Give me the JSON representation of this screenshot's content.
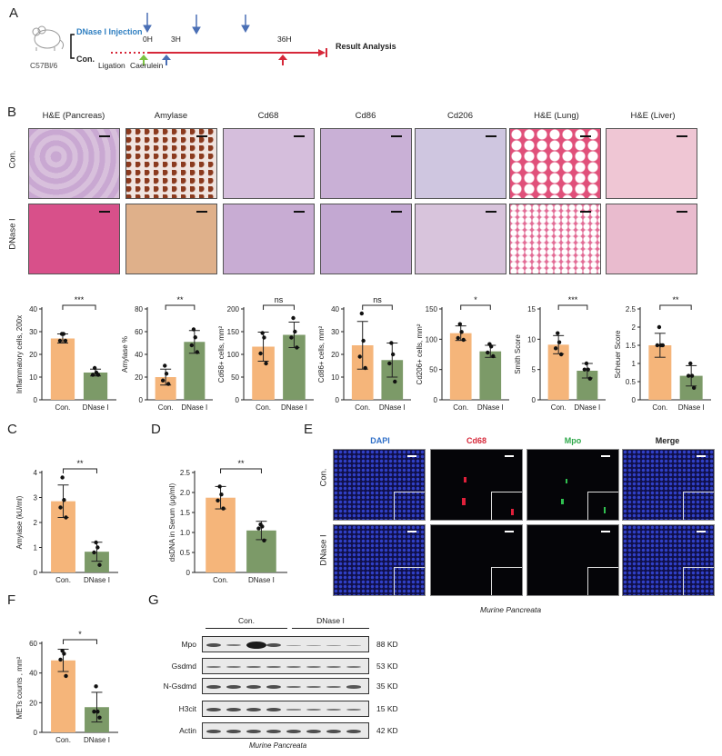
{
  "panels": {
    "A": {
      "letter": "A",
      "strain": "C57Bl/6",
      "groups": [
        "DNase I Injection",
        "Con."
      ],
      "steps": [
        "Ligation",
        "Caerulein"
      ],
      "timepoints": [
        "0H",
        "3H",
        "36H"
      ],
      "endpoint": "Result Analysis",
      "colors": {
        "timeline": "#d62839",
        "dnase": "#2f7fc1",
        "ligation_arrow": "#7cc242",
        "caerulein_arrow": "#4a6fb5",
        "injection_arrow": "#4a6fb5",
        "end_arrow": "#d62839"
      }
    },
    "B": {
      "letter": "B",
      "columns": [
        "H&E (Pancreas)",
        "Amylase",
        "Cd68",
        "Cd86",
        "Cd206",
        "H&E (Lung)",
        "H&E (Liver)"
      ],
      "rows": [
        "Con.",
        "DNase I"
      ]
    },
    "C": {
      "letter": "C"
    },
    "D": {
      "letter": "D"
    },
    "E": {
      "letter": "E",
      "columns": [
        "DAPI",
        "Cd68",
        "Mpo",
        "Merge"
      ],
      "column_colors": [
        "#2f6fc8",
        "#d62839",
        "#2ea84a",
        "#111111"
      ],
      "rows": [
        "Con.",
        "DNase I"
      ],
      "caption": "Murine Pancreata"
    },
    "F": {
      "letter": "F"
    },
    "G": {
      "letter": "G",
      "groups": [
        "Con.",
        "DNase I"
      ],
      "proteins": [
        "Mpo",
        "Gsdmd",
        "N-Gsdmd",
        "H3cit",
        "Actin"
      ],
      "sizes": [
        "88 KD",
        "53 KD",
        "35 KD",
        "15 KD",
        "42 KD"
      ],
      "caption": "Murine Pancreata"
    }
  },
  "chart_data": [
    {
      "id": "B1",
      "type": "bar",
      "categories": [
        "Con.",
        "DNase I"
      ],
      "values": [
        27,
        12
      ],
      "error": [
        2,
        1.5
      ],
      "points": [
        [
          29,
          29,
          26,
          26
        ],
        [
          14,
          12,
          11,
          11
        ]
      ],
      "ylabel": "Inflammatory cells, 200x",
      "ylim": [
        0,
        40
      ],
      "yticks": [
        0,
        10,
        20,
        30,
        40
      ],
      "significance": "***"
    },
    {
      "id": "B2",
      "type": "bar",
      "categories": [
        "Con.",
        "DNase I"
      ],
      "values": [
        20,
        51
      ],
      "error": [
        7,
        10
      ],
      "points": [
        [
          30,
          23,
          17,
          14
        ],
        [
          62,
          55,
          48,
          42
        ]
      ],
      "ylabel": "Amylase %",
      "ylim": [
        0,
        80
      ],
      "yticks": [
        0,
        20,
        40,
        60,
        80
      ],
      "significance": "**"
    },
    {
      "id": "B3",
      "type": "bar",
      "categories": [
        "Con.",
        "DNase I"
      ],
      "values": [
        117,
        143
      ],
      "error": [
        32,
        28
      ],
      "points": [
        [
          147,
          137,
          102,
          80
        ],
        [
          180,
          150,
          137,
          115
        ]
      ],
      "ylabel": "Cd68+ cells, mm²",
      "ylim": [
        0,
        200
      ],
      "yticks": [
        0,
        50,
        100,
        150,
        200
      ],
      "significance": "ns"
    },
    {
      "id": "B4",
      "type": "bar",
      "categories": [
        "Con.",
        "DNase I"
      ],
      "values": [
        24,
        17.5
      ],
      "error": [
        10.5,
        7.5
      ],
      "points": [
        [
          38,
          26,
          19,
          14
        ],
        [
          25,
          20,
          16,
          8
        ]
      ],
      "ylabel": "Cd86+ cells, mm²",
      "ylim": [
        0,
        40
      ],
      "yticks": [
        0,
        10,
        20,
        30,
        40
      ],
      "significance": "ns"
    },
    {
      "id": "B5",
      "type": "bar",
      "categories": [
        "Con.",
        "DNase I"
      ],
      "values": [
        110,
        80
      ],
      "error": [
        12,
        10
      ],
      "points": [
        [
          125,
          112,
          102,
          99
        ],
        [
          92,
          88,
          78,
          72
        ]
      ],
      "ylabel": "Cd206+ cells, mm²",
      "ylim": [
        0,
        150
      ],
      "yticks": [
        0,
        50,
        100,
        150
      ],
      "significance": "*"
    },
    {
      "id": "B6",
      "type": "bar",
      "categories": [
        "Con.",
        "DNase I"
      ],
      "values": [
        9.1,
        4.8
      ],
      "error": [
        1.5,
        1.2
      ],
      "points": [
        [
          11,
          9.5,
          8.5,
          7.5
        ],
        [
          6,
          5,
          5,
          3.5
        ]
      ],
      "ylabel": "Smith Score",
      "ylim": [
        0,
        15
      ],
      "yticks": [
        0,
        5,
        10,
        15
      ],
      "significance": "***"
    },
    {
      "id": "B7",
      "type": "bar",
      "categories": [
        "Con.",
        "DNase I"
      ],
      "values": [
        1.5,
        0.66
      ],
      "error": [
        0.33,
        0.28
      ],
      "points": [
        [
          2,
          1.5,
          1.5,
          1.5
        ],
        [
          1,
          0.66,
          0.66,
          0.33
        ]
      ],
      "ylabel": "Scheuer Score",
      "ylim": [
        0,
        2.5
      ],
      "yticks": [
        "0",
        "0.5",
        "1",
        "1.5",
        "2",
        "2.5"
      ],
      "significance": "**"
    },
    {
      "id": "C",
      "type": "bar",
      "categories": [
        "Con.",
        "DNase I"
      ],
      "values": [
        2.85,
        0.83
      ],
      "error": [
        0.65,
        0.38
      ],
      "points": [
        [
          3.8,
          2.9,
          2.6,
          2.2
        ],
        [
          1.2,
          1.0,
          0.8,
          0.3
        ]
      ],
      "ylabel": "Amylase (kU/ml)",
      "ylim": [
        0,
        4
      ],
      "yticks": [
        0,
        1,
        2,
        3,
        4
      ],
      "significance": "**"
    },
    {
      "id": "D",
      "type": "bar",
      "categories": [
        "Con.",
        "DNase I"
      ],
      "values": [
        1.87,
        1.05
      ],
      "error": [
        0.28,
        0.23
      ],
      "points": [
        [
          2.15,
          1.95,
          1.8,
          1.6
        ],
        [
          1.2,
          1.15,
          1.1,
          0.8
        ]
      ],
      "ylabel": "dsDNA in Serum (μg/ml)",
      "ylim": [
        0,
        2.5
      ],
      "yticks": [
        "0",
        "0.5",
        "1.0",
        "1.5",
        "2.0",
        "2.5"
      ],
      "significance": "**"
    },
    {
      "id": "F",
      "type": "bar",
      "categories": [
        "Con.",
        "DNase I"
      ],
      "values": [
        48.5,
        17
      ],
      "error": [
        7.5,
        10
      ],
      "points": [
        [
          55,
          53,
          49,
          38
        ],
        [
          31,
          14,
          14,
          10
        ]
      ],
      "ylabel": "METs counts , mm²",
      "ylim": [
        0,
        60
      ],
      "yticks": [
        0,
        20,
        40,
        60
      ],
      "significance": "*"
    }
  ]
}
